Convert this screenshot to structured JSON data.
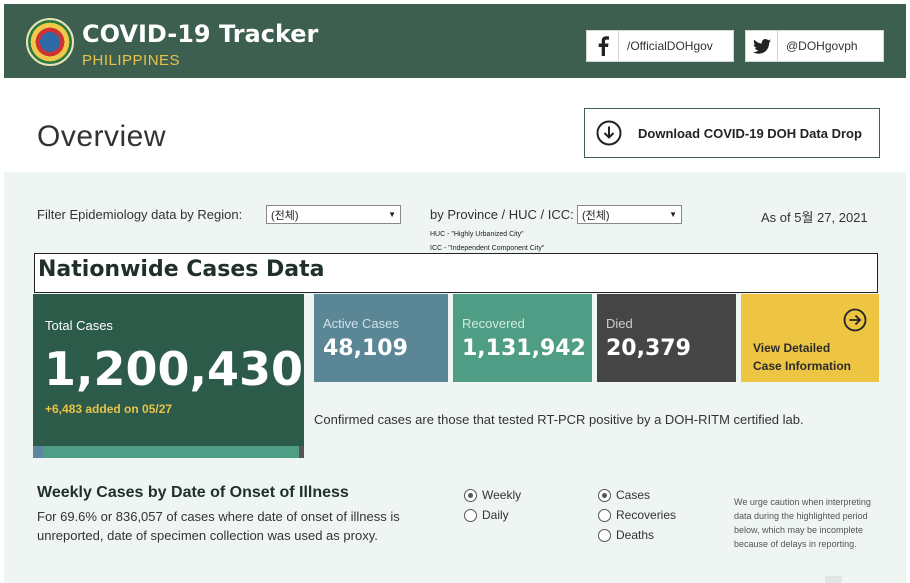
{
  "header": {
    "title": "COVID-19 Tracker",
    "subtitle": "PHILIPPINES",
    "facebook": "/OfficialDOHgov",
    "twitter": "@DOHgovph"
  },
  "page": {
    "heading": "Overview",
    "download_label": "Download COVID-19 DOH Data Drop"
  },
  "filters": {
    "region_label": "Filter Epidemiology data by Region:",
    "region_value": "(전체)",
    "province_label": "by Province / HUC / ICC:",
    "province_value": "(전체)",
    "huc_note": "HUC - \"Highly Urbanized City\"",
    "icc_note": "ICC - \"Independent Component City\"",
    "as_of": "As of 5월 27, 2021"
  },
  "nationwide": {
    "title": "Nationwide Cases Data",
    "total_label": "Total Cases",
    "total_value": "1,200,430",
    "total_added": "+6,483 added on 05/27",
    "active_label": "Active Cases",
    "active_value": "48,109",
    "recovered_label": "Recovered",
    "recovered_value": "1,131,942",
    "died_label": "Died",
    "died_value": "20,379",
    "detail_line1": "View Detailed",
    "detail_line2": "Case Information",
    "confirmed_note": "Confirmed cases are those that tested RT-PCR positive by a DOH-RITM certified lab."
  },
  "weekly": {
    "title": "Weekly Cases by Date of Onset of Illness",
    "description": "For 69.6% or 836,057 of cases where date of onset of illness is unreported, date of specimen collection was used as proxy.",
    "period_options": [
      "Weekly",
      "Daily"
    ],
    "period_selected": "Weekly",
    "measure_options": [
      "Cases",
      "Recoveries",
      "Deaths"
    ],
    "measure_selected": "Cases",
    "caution": "We urge caution when interpreting data during the highlighted period below, which may be incomplete because of delays in reporting."
  },
  "colors": {
    "header_bg": "#3d5f4f",
    "total_bg": "#2d5b49",
    "active_bg": "#5a8696",
    "recovered_bg": "#4f9d84",
    "died_bg": "#454545",
    "detail_bg": "#eec443",
    "accent_yellow": "#e8c34a"
  }
}
